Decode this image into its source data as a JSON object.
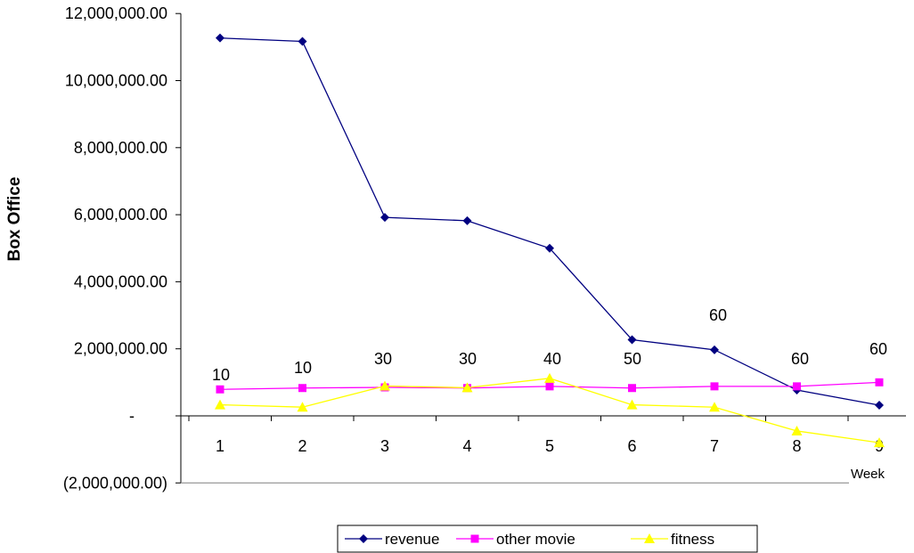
{
  "chart_data": {
    "type": "line",
    "ylabel": "Box Office",
    "xlabel": "Week",
    "x": [
      1,
      2,
      3,
      4,
      5,
      6,
      7,
      8,
      9
    ],
    "x_tick_labels": [
      "1",
      "2",
      "3",
      "4",
      "5",
      "6",
      "7",
      "8",
      "9"
    ],
    "ylim": [
      -2000000,
      12000000
    ],
    "y_ticks": [
      -2000000,
      0,
      2000000,
      4000000,
      6000000,
      8000000,
      10000000,
      12000000
    ],
    "y_tick_labels": [
      "(2,000,000.00)",
      "-",
      "2,000,000.00",
      "4,000,000.00",
      "6,000,000.00",
      "8,000,000.00",
      "10,000,000.00",
      "12,000,000.00"
    ],
    "grid": false,
    "legend_position": "bottom",
    "series": [
      {
        "name": "revenue",
        "color": "#000080",
        "marker": "diamond",
        "values": [
          11270000,
          11170000,
          5920000,
          5820000,
          5000000,
          2270000,
          1970000,
          770000,
          320000
        ]
      },
      {
        "name": "other movie",
        "color": "#FF00FF",
        "marker": "square",
        "values": [
          790000,
          830000,
          850000,
          830000,
          880000,
          830000,
          880000,
          880000,
          1000000
        ]
      },
      {
        "name": "fitness",
        "color": "#FFFF00",
        "marker": "triangle",
        "values": [
          330000,
          260000,
          890000,
          840000,
          1120000,
          330000,
          260000,
          -450000,
          -800000
        ]
      }
    ],
    "annotations": [
      "10",
      "10",
      "30",
      "30",
      "40",
      "50",
      "60",
      "60",
      "60"
    ]
  }
}
